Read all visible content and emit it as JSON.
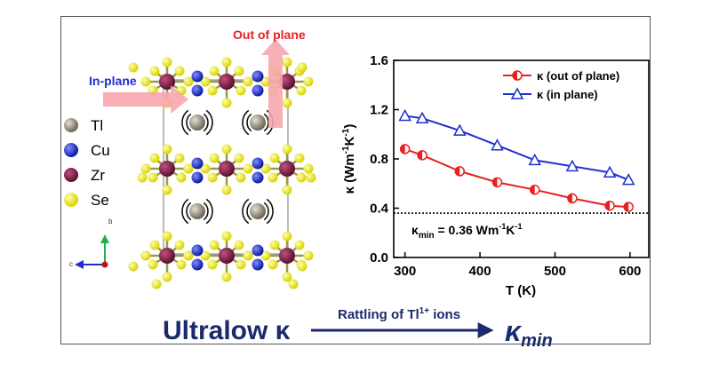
{
  "figure": {
    "arrow_in_plane_label": "In-plane",
    "arrow_out_plane_label": "Out of plane",
    "axis_b_label": "b",
    "axis_c_label": "c",
    "bottom_main_left": "Ultralow κ",
    "bottom_arrow_label": "Rattling of Tl",
    "bottom_arrow_sup": "1+",
    "bottom_arrow_tail": " ions",
    "bottom_main_right": "κ",
    "bottom_main_right_sub": "min"
  },
  "legend_atoms": [
    {
      "label": "Tl",
      "color": "#8d8676"
    },
    {
      "label": "Cu",
      "color": "#1d33d6"
    },
    {
      "label": "Zr",
      "color": "#7a1f45"
    },
    {
      "label": "Se",
      "color": "#f2ee1c"
    }
  ],
  "colors": {
    "out_of_plane": "#e8201f",
    "in_plane": "#1f2fd0",
    "arrow": "#1a2a6c",
    "text_dark": "#1a2a6c"
  },
  "chart_data": {
    "type": "line",
    "xlabel": "T (K)",
    "ylabel_main": "κ (Wm",
    "ylabel_sup1": "-1",
    "ylabel_mid": "K",
    "ylabel_sup2": "-1",
    "ylabel_end": ")",
    "xlim": [
      285,
      625
    ],
    "ylim": [
      0.0,
      1.6
    ],
    "xticks": [
      300,
      400,
      500,
      600
    ],
    "xtick_labels": [
      "300",
      "400",
      "500",
      "600"
    ],
    "yticks": [
      0.0,
      0.4,
      0.8,
      1.2,
      1.6
    ],
    "ytick_labels": [
      "0.0",
      "0.4",
      "0.8",
      "1.2",
      "1.6"
    ],
    "series": [
      {
        "name": "κ (out of plane)",
        "x": [
          300,
          323,
          373,
          423,
          473,
          523,
          573,
          598
        ],
        "y": [
          0.88,
          0.83,
          0.7,
          0.61,
          0.55,
          0.48,
          0.42,
          0.41
        ]
      },
      {
        "name": "κ (in plane)",
        "x": [
          300,
          323,
          373,
          423,
          473,
          523,
          573,
          598
        ],
        "y": [
          1.15,
          1.13,
          1.03,
          0.91,
          0.79,
          0.74,
          0.69,
          0.63
        ]
      }
    ],
    "reference_line": {
      "y": 0.36,
      "label_main": "κ",
      "label_sub": "min",
      "label_rest": " = 0.36 Wm",
      "label_sup1": "-1",
      "label_k": "K",
      "label_sup2": "-1"
    },
    "legend_position": "top-right"
  }
}
